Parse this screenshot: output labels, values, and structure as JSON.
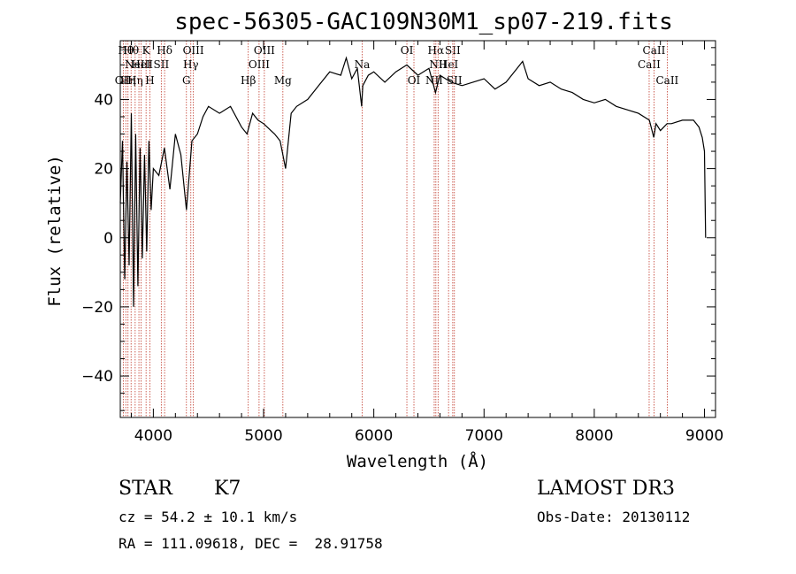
{
  "chart_data": {
    "type": "line",
    "title": "spec-56305-GAC109N30M1_sp07-219.fits",
    "xlabel": "Wavelength (Å)",
    "ylabel": "Flux (relative)",
    "xlim": [
      3700,
      9100
    ],
    "ylim": [
      -52,
      57
    ],
    "xticks": [
      4000,
      5000,
      6000,
      7000,
      8000,
      9000
    ],
    "yticks": [
      -40,
      -20,
      0,
      20,
      40
    ],
    "ytick_labels": [
      "−40",
      "−20",
      "0",
      "20",
      "40"
    ],
    "series": [
      {
        "name": "flux",
        "x": [
          3700,
          3720,
          3740,
          3760,
          3780,
          3800,
          3820,
          3840,
          3860,
          3880,
          3900,
          3920,
          3940,
          3960,
          3980,
          4000,
          4050,
          4100,
          4150,
          4200,
          4250,
          4300,
          4350,
          4400,
          4450,
          4500,
          4600,
          4700,
          4800,
          4850,
          4900,
          4950,
          5000,
          5100,
          5150,
          5200,
          5250,
          5300,
          5400,
          5500,
          5600,
          5700,
          5750,
          5800,
          5850,
          5890,
          5900,
          5950,
          6000,
          6100,
          6200,
          6300,
          6400,
          6500,
          6560,
          6600,
          6700,
          6800,
          6900,
          7000,
          7100,
          7200,
          7300,
          7350,
          7400,
          7500,
          7600,
          7700,
          7800,
          7900,
          8000,
          8100,
          8200,
          8300,
          8400,
          8500,
          8540,
          8560,
          8600,
          8660,
          8700,
          8800,
          8900,
          8950,
          8980,
          9000,
          9010
        ],
        "y": [
          10,
          28,
          -12,
          22,
          -8,
          36,
          -20,
          30,
          -14,
          26,
          -6,
          24,
          -4,
          28,
          8,
          20,
          18,
          26,
          14,
          30,
          24,
          8,
          28,
          30,
          35,
          38,
          36,
          38,
          32,
          30,
          36,
          34,
          33,
          30,
          28,
          20,
          36,
          38,
          40,
          44,
          48,
          47,
          52,
          46,
          49,
          38,
          44,
          47,
          48,
          45,
          48,
          50,
          47,
          49,
          42,
          47,
          45,
          44,
          45,
          46,
          43,
          45,
          49,
          51,
          46,
          44,
          45,
          43,
          42,
          40,
          39,
          40,
          38,
          37,
          36,
          34,
          29,
          33,
          31,
          33,
          33,
          34,
          34,
          32,
          29,
          25,
          0
        ]
      }
    ],
    "emission_lines": [
      {
        "x": 3727,
        "label": "OII",
        "row": 3
      },
      {
        "x": 3750,
        "label": "Hθ",
        "row": 1
      },
      {
        "x": 3770,
        "label": "Hη",
        "row": 3
      },
      {
        "x": 3798,
        "label": "Hθ",
        "row": 1
      },
      {
        "x": 3835,
        "label": "Hη",
        "row": 3
      },
      {
        "x": 3869,
        "label": "NeIII",
        "row": 2
      },
      {
        "x": 3889,
        "label": "HeI",
        "row": 2
      },
      {
        "x": 3934,
        "label": "K",
        "row": 1
      },
      {
        "x": 3969,
        "label": "H",
        "row": 3
      },
      {
        "x": 4072,
        "label": "SII",
        "row": 2
      },
      {
        "x": 4102,
        "label": "Hδ",
        "row": 1
      },
      {
        "x": 4300,
        "label": "G",
        "row": 3
      },
      {
        "x": 4340,
        "label": "Hγ",
        "row": 2
      },
      {
        "x": 4363,
        "label": "OIII",
        "row": 1
      },
      {
        "x": 4861,
        "label": "Hβ",
        "row": 3
      },
      {
        "x": 4959,
        "label": "OIII",
        "row": 2
      },
      {
        "x": 5007,
        "label": "OIII",
        "row": 1
      },
      {
        "x": 5175,
        "label": "Mg",
        "row": 3
      },
      {
        "x": 5894,
        "label": "Na",
        "row": 2
      },
      {
        "x": 6300,
        "label": "OI",
        "row": 1
      },
      {
        "x": 6364,
        "label": "OI",
        "row": 3
      },
      {
        "x": 6548,
        "label": "NII",
        "row": 3
      },
      {
        "x": 6563,
        "label": "Hα",
        "row": 1
      },
      {
        "x": 6583,
        "label": "NII",
        "row": 2
      },
      {
        "x": 6678,
        "label": "HeI",
        "row": 2
      },
      {
        "x": 6716,
        "label": "SII",
        "row": 1
      },
      {
        "x": 6731,
        "label": "SII",
        "row": 3
      },
      {
        "x": 8498,
        "label": "CaII",
        "row": 2
      },
      {
        "x": 8542,
        "label": "CaII",
        "row": 1
      },
      {
        "x": 8662,
        "label": "CaII",
        "row": 3
      }
    ]
  },
  "info": {
    "class": "STAR",
    "subclass": "K7",
    "survey": "LAMOST DR3",
    "velocity": "cz = 54.2 ± 10.1 km/s",
    "obs_date": "Obs-Date: 20130112",
    "coords": "RA = 111.09618, DEC =  28.91758"
  }
}
